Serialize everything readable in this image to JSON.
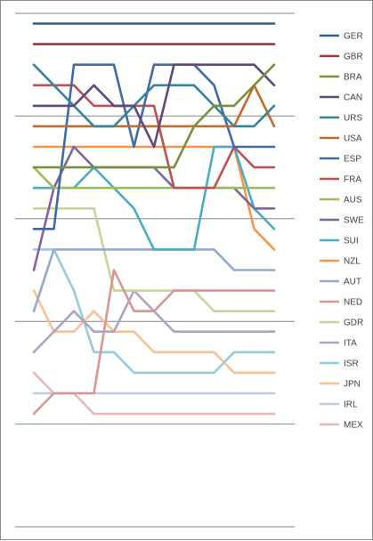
{
  "chart_data": {
    "type": "line",
    "title": "",
    "xlabel": "",
    "ylabel": "",
    "x": [
      1,
      2,
      3,
      4,
      5,
      6,
      7,
      8,
      9,
      10,
      11,
      12,
      13
    ],
    "ylim": [
      0.5,
      25.5
    ],
    "y_inverted": true,
    "grid": "horizontal",
    "legend_position": "right",
    "series": [
      {
        "name": "GER",
        "color": "#2E5E94",
        "values": [
          1,
          1,
          1,
          1,
          1,
          1,
          1,
          1,
          1,
          1,
          1,
          1,
          1
        ]
      },
      {
        "name": "GBR",
        "color": "#953B3B",
        "values": [
          2,
          2,
          2,
          2,
          2,
          2,
          2,
          2,
          2,
          2,
          2,
          2,
          2
        ]
      },
      {
        "name": "BRA",
        "color": "#76923C",
        "values": [
          8,
          8,
          8,
          8,
          8,
          8,
          8,
          8,
          6,
          5,
          5,
          4,
          3
        ]
      },
      {
        "name": "CAN",
        "color": "#5F497A",
        "values": [
          5,
          5,
          5,
          4,
          5,
          5,
          7,
          3,
          3,
          3,
          3,
          3,
          4
        ]
      },
      {
        "name": "URS",
        "color": "#31859C",
        "values": [
          3,
          4,
          5,
          6,
          6,
          5,
          4,
          4,
          4,
          5,
          6,
          6,
          5
        ]
      },
      {
        "name": "USA",
        "color": "#C76A27",
        "values": [
          6,
          6,
          6,
          6,
          6,
          6,
          6,
          6,
          6,
          6,
          6,
          4,
          6
        ]
      },
      {
        "name": "ESP",
        "color": "#3F6BA6",
        "values": [
          11,
          11,
          3,
          3,
          3,
          7,
          3,
          3,
          3,
          4,
          7,
          7,
          7
        ]
      },
      {
        "name": "FRA",
        "color": "#C0504D",
        "values": [
          4,
          4,
          4,
          5,
          5,
          5,
          5,
          9,
          9,
          9,
          7,
          8,
          8
        ]
      },
      {
        "name": "AUS",
        "color": "#9BBB59",
        "values": [
          8,
          9,
          9,
          9,
          9,
          9,
          9,
          9,
          9,
          9,
          9,
          9,
          9
        ]
      },
      {
        "name": "SWE",
        "color": "#8064A2",
        "values": [
          13,
          9,
          7,
          8,
          8,
          8,
          8,
          9,
          9,
          9,
          9,
          10,
          10
        ]
      },
      {
        "name": "SUI",
        "color": "#4BACC6",
        "values": [
          9,
          9,
          9,
          8,
          9,
          10,
          12,
          12,
          12,
          7,
          7,
          10,
          11
        ]
      },
      {
        "name": "NZL",
        "color": "#F79646",
        "values": [
          7,
          7,
          7,
          7,
          7,
          7,
          7,
          7,
          7,
          7,
          7,
          11,
          12
        ]
      },
      {
        "name": "AUT",
        "color": "#95A7CF",
        "values": [
          15,
          12,
          12,
          12,
          12,
          12,
          12,
          12,
          12,
          12,
          13,
          13,
          13
        ]
      },
      {
        "name": "NED",
        "color": "#D99694",
        "values": [
          20,
          19,
          19,
          19,
          13,
          15,
          15,
          14,
          14,
          14,
          14,
          14,
          14
        ]
      },
      {
        "name": "GDR",
        "color": "#C3D69B",
        "values": [
          10,
          10,
          10,
          10,
          14,
          14,
          14,
          14,
          14,
          15,
          15,
          15,
          15
        ]
      },
      {
        "name": "ITA",
        "color": "#B2A1C7",
        "values": [
          17,
          16,
          15,
          16,
          16,
          14,
          15,
          16,
          16,
          16,
          16,
          16,
          16
        ]
      },
      {
        "name": "ISR",
        "color": "#93CDDD",
        "values": [
          12,
          12,
          14,
          17,
          17,
          18,
          18,
          18,
          18,
          18,
          17,
          17,
          17
        ]
      },
      {
        "name": "JPN",
        "color": "#FAC08F",
        "values": [
          14,
          16,
          16,
          15,
          16,
          16,
          17,
          17,
          17,
          17,
          18,
          18,
          18
        ]
      },
      {
        "name": "IRL",
        "color": "#B9CDE5",
        "values": [
          19,
          19,
          19,
          19,
          19,
          19,
          19,
          19,
          19,
          19,
          19,
          19,
          19
        ]
      },
      {
        "name": "MEX",
        "color": "#E6B9B8",
        "values": [
          18,
          19,
          19,
          20,
          20,
          20,
          20,
          20,
          20,
          20,
          20,
          20,
          20
        ]
      }
    ]
  }
}
